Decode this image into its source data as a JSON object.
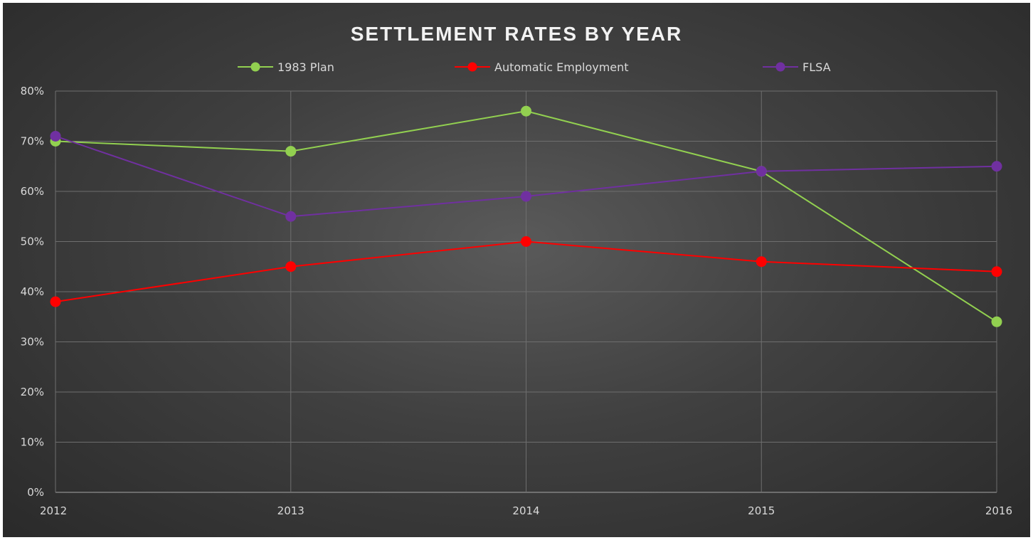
{
  "chart_data": {
    "type": "line",
    "title": "SETTLEMENT RATES BY YEAR",
    "x": [
      "2012",
      "2013",
      "2014",
      "2015",
      "2016"
    ],
    "y_ticks": [
      "0%",
      "10%",
      "20%",
      "30%",
      "40%",
      "50%",
      "60%",
      "70%",
      "80%"
    ],
    "ylim": [
      0,
      80
    ],
    "y_unit": "%",
    "grid": true,
    "legend_position": "top",
    "series": [
      {
        "name": "1983 Plan",
        "color": "#92d050",
        "values": [
          70,
          68,
          76,
          64,
          34
        ]
      },
      {
        "name": "Automatic Employment",
        "color": "#ff0000",
        "values": [
          38,
          45,
          50,
          46,
          44
        ]
      },
      {
        "name": "FLSA",
        "color": "#7030a0",
        "values": [
          71,
          55,
          59,
          64,
          65
        ]
      }
    ]
  }
}
